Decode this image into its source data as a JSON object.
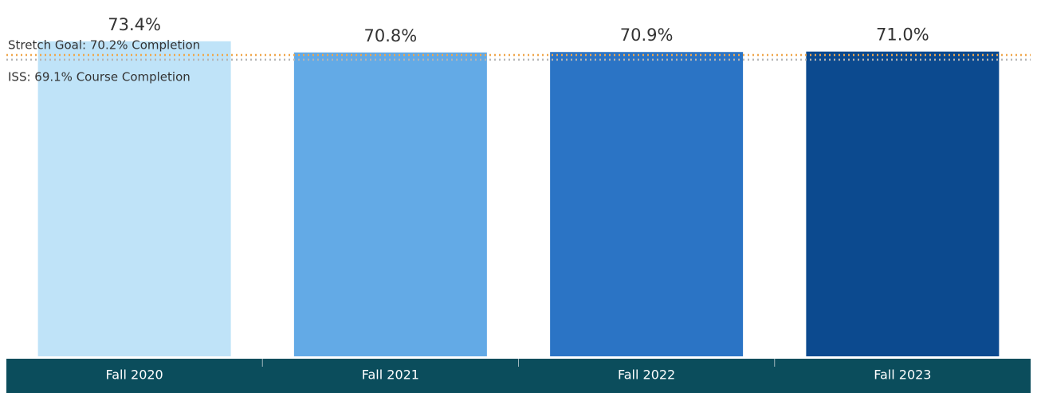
{
  "chart_data": {
    "type": "bar",
    "categories": [
      "Fall 2020",
      "Fall 2021",
      "Fall 2022",
      "Fall 2023"
    ],
    "values": [
      73.4,
      70.8,
      70.9,
      71.0
    ],
    "value_labels": [
      "73.4%",
      "70.8%",
      "70.9%",
      "71.0%"
    ],
    "colors": [
      "#bfe3f8",
      "#63aae6",
      "#2b74c5",
      "#0c4a8f"
    ],
    "ylim": [
      0,
      78
    ],
    "reference_lines": [
      {
        "label": "Stretch Goal: 70.2% Completion",
        "value": 70.2,
        "color": "#f0a64a"
      },
      {
        "label": "ISS: 69.1% Course Completion",
        "value": 69.1,
        "color": "#b5b5b5"
      }
    ]
  }
}
